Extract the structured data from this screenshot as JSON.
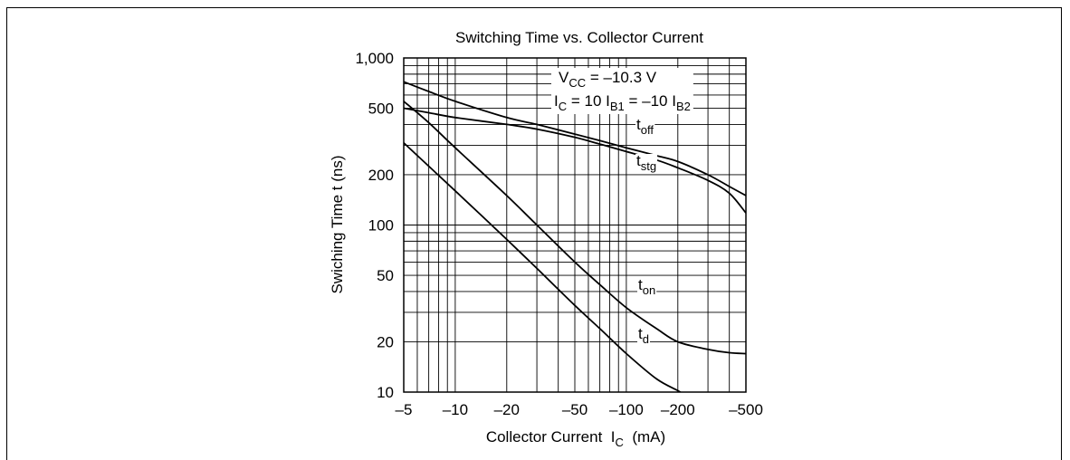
{
  "chart_data": {
    "type": "line",
    "title": "Switching Time vs. Collector Current",
    "xlabel": {
      "main": "Collector Current  I",
      "sub": "C",
      "unit": "  (mA)"
    },
    "ylabel": "Swiching Time  t  (ns)",
    "x_scale": "log",
    "y_scale": "log",
    "xlim": [
      -5,
      -500
    ],
    "ylim": [
      10,
      1000
    ],
    "x_ticks": [
      {
        "value": -5,
        "label": "–5"
      },
      {
        "value": -10,
        "label": "–10"
      },
      {
        "value": -20,
        "label": "–20"
      },
      {
        "value": -50,
        "label": "–50"
      },
      {
        "value": -100,
        "label": "–100"
      },
      {
        "value": -200,
        "label": "–200"
      },
      {
        "value": -500,
        "label": "–500"
      }
    ],
    "y_ticks": [
      {
        "value": 10,
        "label": "10"
      },
      {
        "value": 20,
        "label": "20"
      },
      {
        "value": 50,
        "label": "50"
      },
      {
        "value": 100,
        "label": "100"
      },
      {
        "value": 200,
        "label": "200"
      },
      {
        "value": 500,
        "label": "500"
      },
      {
        "value": 1000,
        "label": "1,000"
      }
    ],
    "grid": true,
    "conditions": [
      {
        "parts": [
          [
            "V",
            ""
          ],
          [
            "CC",
            "sub"
          ],
          [
            " = –10.3 V",
            ""
          ]
        ]
      },
      {
        "parts": [
          [
            "I",
            ""
          ],
          [
            "C",
            "sub"
          ],
          [
            " = 10 I",
            ""
          ],
          [
            "B1",
            "sub"
          ],
          [
            " = –10 I",
            ""
          ],
          [
            "B2",
            "sub"
          ]
        ]
      }
    ],
    "series": [
      {
        "name": "t",
        "sub": "off",
        "x": [
          -5,
          -7,
          -10,
          -20,
          -30,
          -50,
          -70,
          -100,
          -150,
          -200,
          -300,
          -400,
          -500
        ],
        "y": [
          720,
          630,
          550,
          440,
          400,
          350,
          320,
          290,
          260,
          240,
          200,
          170,
          150
        ]
      },
      {
        "name": "t",
        "sub": "stg",
        "x": [
          -5,
          -7,
          -10,
          -20,
          -30,
          -50,
          -70,
          -100,
          -150,
          -200,
          -300,
          -400,
          -500
        ],
        "y": [
          500,
          470,
          440,
          400,
          375,
          335,
          305,
          275,
          245,
          220,
          185,
          155,
          118
        ]
      },
      {
        "name": "t",
        "sub": "on",
        "x": [
          -5,
          -7,
          -10,
          -20,
          -30,
          -50,
          -70,
          -100,
          -150,
          -200,
          -300,
          -400,
          -500
        ],
        "y": [
          550,
          410,
          290,
          150,
          100,
          60,
          44,
          32,
          24,
          20,
          18,
          17.2,
          17
        ]
      },
      {
        "name": "t",
        "sub": "d",
        "x": [
          -5,
          -7,
          -10,
          -20,
          -30,
          -50,
          -70,
          -100,
          -150,
          -200,
          -220
        ],
        "y": [
          310,
          225,
          160,
          82,
          55,
          33,
          24,
          17,
          12,
          10.2,
          9.6
        ]
      }
    ]
  }
}
